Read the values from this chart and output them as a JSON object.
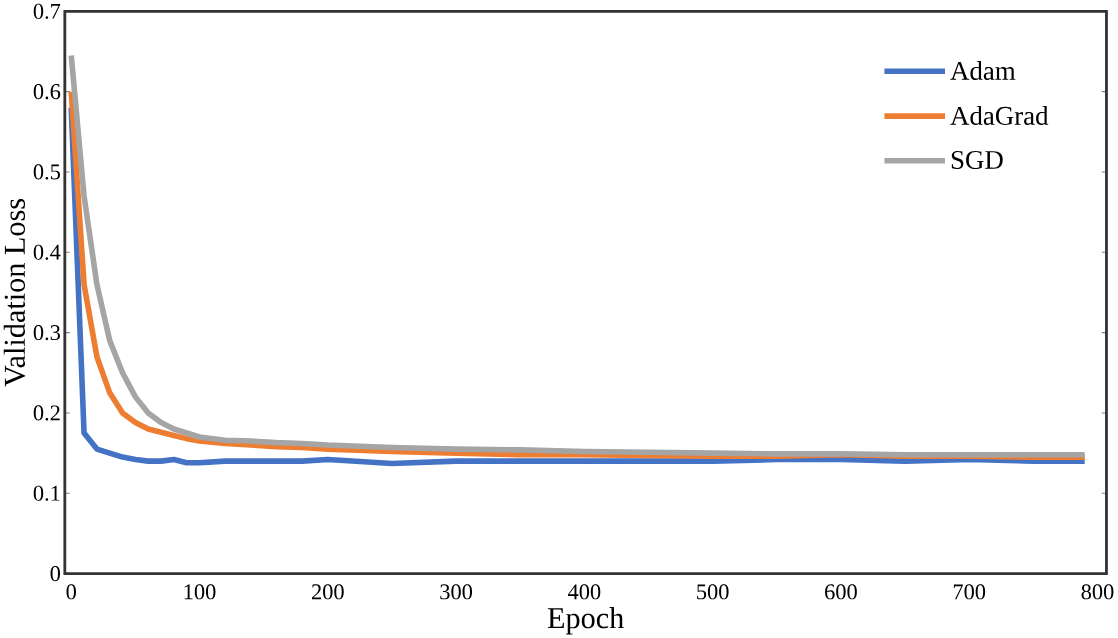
{
  "chart_data": {
    "type": "line",
    "xlabel": "Epoch",
    "ylabel": "Validation Loss",
    "xlim": [
      -5,
      807
    ],
    "ylim": [
      0,
      0.7
    ],
    "xticks": [
      0,
      100,
      200,
      300,
      400,
      500,
      600,
      700,
      800
    ],
    "yticks": [
      0,
      0.1,
      0.2,
      0.3,
      0.4,
      0.5,
      0.6,
      0.7
    ],
    "legend": "top right",
    "grid": false,
    "marker": "none",
    "line_style": "solid",
    "x": [
      0,
      10,
      20,
      30,
      40,
      50,
      60,
      70,
      80,
      90,
      100,
      120,
      140,
      160,
      180,
      200,
      250,
      300,
      350,
      400,
      450,
      500,
      550,
      600,
      650,
      700,
      750,
      790
    ],
    "series": [
      {
        "name": "Adam",
        "color": "#4472c4",
        "values": [
          0.58,
          0.175,
          0.155,
          0.15,
          0.145,
          0.142,
          0.14,
          0.14,
          0.142,
          0.138,
          0.138,
          0.14,
          0.14,
          0.14,
          0.14,
          0.142,
          0.137,
          0.14,
          0.14,
          0.14,
          0.14,
          0.14,
          0.142,
          0.142,
          0.14,
          0.142,
          0.14,
          0.14
        ]
      },
      {
        "name": "AdaGrad",
        "color": "#ed7d31",
        "values": [
          0.6,
          0.36,
          0.27,
          0.225,
          0.2,
          0.188,
          0.18,
          0.176,
          0.172,
          0.168,
          0.165,
          0.162,
          0.16,
          0.158,
          0.157,
          0.155,
          0.152,
          0.15,
          0.148,
          0.148,
          0.147,
          0.146,
          0.146,
          0.148,
          0.146,
          0.146,
          0.145,
          0.145
        ]
      },
      {
        "name": "SGD",
        "color": "#a5a5a5",
        "values": [
          0.645,
          0.47,
          0.36,
          0.29,
          0.25,
          0.22,
          0.2,
          0.188,
          0.18,
          0.175,
          0.17,
          0.166,
          0.165,
          0.163,
          0.162,
          0.16,
          0.157,
          0.155,
          0.154,
          0.152,
          0.151,
          0.15,
          0.149,
          0.149,
          0.148,
          0.148,
          0.148,
          0.148
        ]
      }
    ]
  }
}
